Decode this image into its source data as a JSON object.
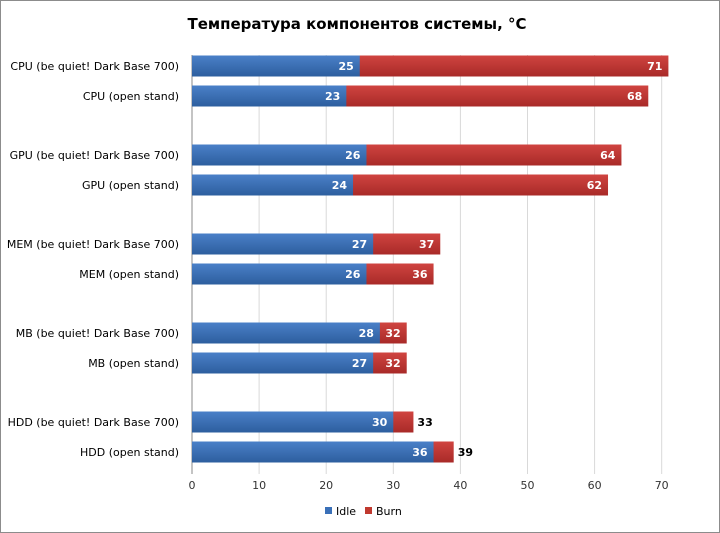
{
  "chart_data": {
    "type": "bar",
    "orientation": "horizontal",
    "title": "Температура компонентов системы, °C",
    "categories": [
      "CPU (be quiet! Dark Base 700)",
      "CPU (open stand)",
      "GPU (be quiet! Dark Base 700)",
      "GPU (open stand)",
      "MEM (be quiet! Dark Base 700)",
      "MEM (open stand)",
      "MB (be quiet! Dark Base 700)",
      "MB (open stand)",
      "HDD (be quiet! Dark Base 700)",
      "HDD (open stand)"
    ],
    "series": [
      {
        "name": "Idle",
        "color": "#3a70b8",
        "values": [
          25,
          23,
          26,
          24,
          27,
          26,
          28,
          27,
          30,
          36
        ]
      },
      {
        "name": "Burn",
        "color": "#c0392f",
        "values": [
          71,
          68,
          64,
          62,
          37,
          36,
          32,
          32,
          33,
          39
        ]
      }
    ],
    "xlim": [
      0,
      70
    ],
    "xticks": [
      0,
      10,
      20,
      30,
      40,
      50,
      60,
      70
    ],
    "grid": "vertical",
    "legend": "bottom"
  }
}
